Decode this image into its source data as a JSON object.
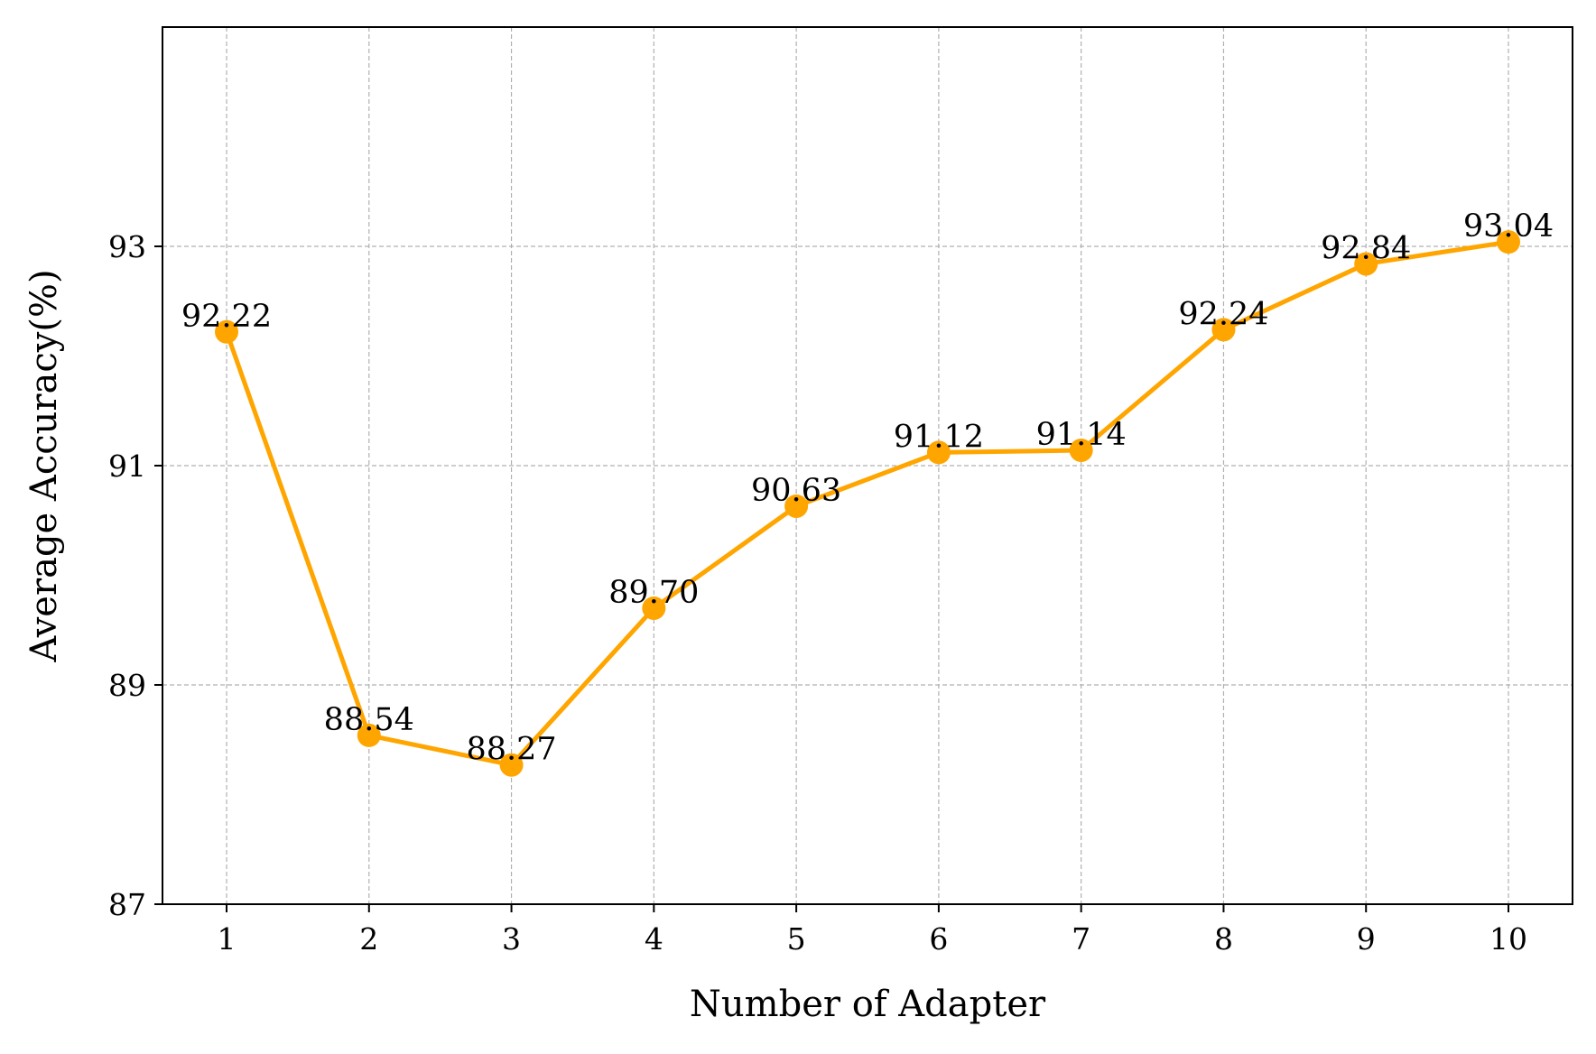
{
  "chart_data": {
    "type": "line",
    "title": "",
    "xlabel": "Number of Adapter",
    "ylabel": "Average Accuracy(%)",
    "x": [
      1,
      2,
      3,
      4,
      5,
      6,
      7,
      8,
      9,
      10
    ],
    "x_tick_labels": [
      "1",
      "2",
      "3",
      "4",
      "5",
      "6",
      "7",
      "8",
      "9",
      "10"
    ],
    "y_tick_values": [
      87,
      89,
      91,
      93
    ],
    "y_tick_labels": [
      "87",
      "89",
      "91",
      "93"
    ],
    "xlim": [
      0.55,
      10.45
    ],
    "ylim": [
      87,
      95
    ],
    "grid": true,
    "series": [
      {
        "color": "#FFA500",
        "marker": "circle",
        "values": [
          92.22,
          88.54,
          88.27,
          89.7,
          90.63,
          91.12,
          91.14,
          92.24,
          92.84,
          93.04
        ],
        "data_labels": [
          "92.22",
          "88.54",
          "88.27",
          "89.70",
          "90.63",
          "91.12",
          "91.14",
          "92.24",
          "92.84",
          "93.04"
        ]
      }
    ]
  }
}
